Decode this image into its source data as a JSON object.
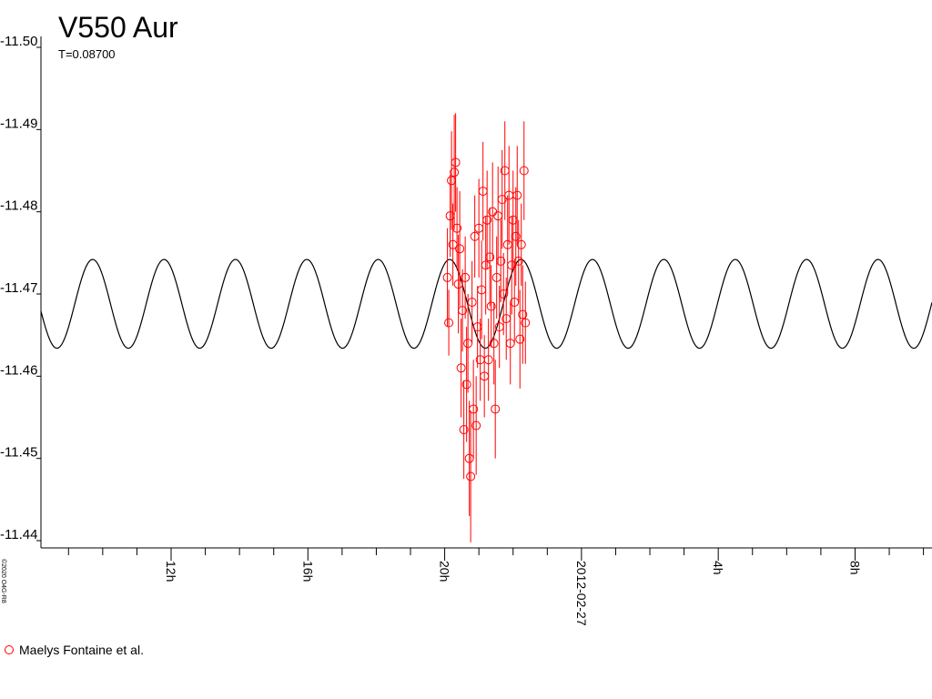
{
  "chart_data": {
    "type": "scatter",
    "title": "V550 Aur",
    "copyright": "©2020 O4G-R8",
    "model": {
      "label": "T=0.08700",
      "period": 0.087,
      "mean": -11.4688,
      "amplitude": 0.0054,
      "epoch": 20.145,
      "color": "#000000"
    },
    "xlim": [
      8.194,
      34.25
    ],
    "xticks": [
      {
        "value": 12,
        "label": "12h"
      },
      {
        "value": 16,
        "label": "16h"
      },
      {
        "value": 20,
        "label": "20h"
      },
      {
        "value": 24,
        "label": "2012-02-27"
      },
      {
        "value": 28,
        "label": "4h"
      },
      {
        "value": 32,
        "label": "8h"
      }
    ],
    "x_minor_ticks": [
      9,
      10,
      11,
      13,
      14,
      15,
      17,
      18,
      19,
      21,
      22,
      23,
      25,
      26,
      27,
      29,
      30,
      31,
      33,
      34
    ],
    "ylim": [
      -11.5,
      -11.44
    ],
    "yticks": [
      {
        "value": -11.5,
        "label": "-11.50"
      },
      -11.49,
      -11.48,
      -11.47,
      -11.46,
      -11.45,
      -11.44
    ],
    "x": [
      20.08,
      20.12,
      20.16,
      20.2,
      20.24,
      20.28,
      20.32,
      20.36,
      20.4,
      20.44,
      20.48,
      20.52,
      20.56,
      20.6,
      20.64,
      20.68,
      20.72,
      20.76,
      20.8,
      20.84,
      20.88,
      20.92,
      20.96,
      21.0,
      21.04,
      21.08,
      21.12,
      21.16,
      21.2,
      21.24,
      21.28,
      21.32,
      21.36,
      21.4,
      21.44,
      21.48,
      21.52,
      21.56,
      21.6,
      21.64,
      21.68,
      21.72,
      21.76,
      21.8,
      21.84,
      21.88,
      21.92,
      21.96,
      22.0,
      22.04,
      22.08,
      22.12,
      22.16,
      22.2,
      22.24,
      22.28,
      22.32,
      22.36
    ],
    "series": [
      {
        "name": "Maelys Fontaine et al.",
        "color": "#ff0000",
        "values": [
          -11.472,
          -11.4665,
          -11.4795,
          -11.4838,
          -11.476,
          -11.4848,
          -11.486,
          -11.478,
          -11.4712,
          -11.4755,
          -11.461,
          -11.468,
          -11.4535,
          -11.472,
          -11.459,
          -11.464,
          -11.45,
          -11.4478,
          -11.469,
          -11.456,
          -11.477,
          -11.454,
          -11.466,
          -11.478,
          -11.462,
          -11.4705,
          -11.4825,
          -11.46,
          -11.4735,
          -11.479,
          -11.462,
          -11.4745,
          -11.4685,
          -11.48,
          -11.464,
          -11.456,
          -11.472,
          -11.4795,
          -11.466,
          -11.474,
          -11.4815,
          -11.47,
          -11.485,
          -11.467,
          -11.476,
          -11.482,
          -11.464,
          -11.4735,
          -11.479,
          -11.469,
          -11.477,
          -11.482,
          -11.474,
          -11.4645,
          -11.476,
          -11.4675,
          -11.485,
          -11.4665
        ],
        "errors": [
          0.006,
          0.004,
          0.005,
          0.006,
          0.005,
          0.007,
          0.006,
          0.005,
          0.006,
          0.007,
          0.006,
          0.005,
          0.006,
          0.005,
          0.007,
          0.006,
          0.007,
          0.008,
          0.005,
          0.006,
          0.005,
          0.006,
          0.005,
          0.006,
          0.005,
          0.006,
          0.006,
          0.005,
          0.006,
          0.006,
          0.005,
          0.006,
          0.005,
          0.006,
          0.005,
          0.006,
          0.005,
          0.006,
          0.005,
          0.005,
          0.006,
          0.005,
          0.006,
          0.005,
          0.006,
          0.006,
          0.005,
          0.006,
          0.006,
          0.005,
          0.006,
          0.006,
          0.005,
          0.006,
          0.005,
          0.006,
          0.006,
          0.005
        ]
      }
    ]
  }
}
